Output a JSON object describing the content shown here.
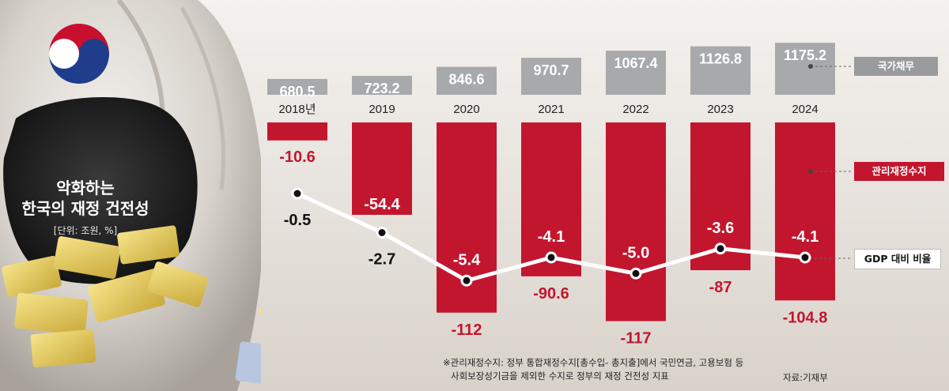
{
  "title": {
    "line1": "악화하는",
    "line2": "한국의 재정 건전성",
    "unit": "[단위: 조원, %]"
  },
  "legend": {
    "debt": "국가채무",
    "balance": "관리재정수지",
    "gdp_ratio": "GDP 대비 비율"
  },
  "note": {
    "line1": "※관리재정수지: 정부 통합재정수지[총수입- 총지출]에서 국민연금, 고용보험 등",
    "line2": "사회보장성기금을 제외한 수지로 정부의 재정 건전성 지표"
  },
  "source": "자료:기재부",
  "colors": {
    "debt_bar": "#a7a9aa",
    "balance_bar": "#c2162e",
    "line": "#ffffff",
    "text_dark": "#222222"
  },
  "chart_data": {
    "type": "bar",
    "categories": [
      "2018년",
      "2019",
      "2020",
      "2021",
      "2022",
      "2023",
      "2024"
    ],
    "series": [
      {
        "name": "국가채무",
        "values": [
          680.5,
          723.2,
          846.6,
          970.7,
          1067.4,
          1126.8,
          1175.2
        ],
        "labels": [
          "680.5",
          "723.2",
          "846.6",
          "970.7",
          "1067.4",
          "1126.8",
          "1175.2"
        ]
      },
      {
        "name": "관리재정수지",
        "values": [
          -10.6,
          -54.4,
          -112,
          -90.6,
          -117,
          -87,
          -104.8
        ],
        "labels": [
          "-10.6",
          "-54.4",
          "-112",
          "-90.6",
          "-117",
          "-87",
          "-104.8"
        ]
      },
      {
        "name": "GDP 대비 비율",
        "type": "line",
        "values": [
          -0.5,
          -2.7,
          -5.4,
          -4.1,
          -5.0,
          -3.6,
          -4.1
        ],
        "labels": [
          "-0.5",
          "-2.7",
          "-5.4",
          "-4.1",
          "-5.0",
          "-3.6",
          "-4.1"
        ]
      }
    ]
  }
}
